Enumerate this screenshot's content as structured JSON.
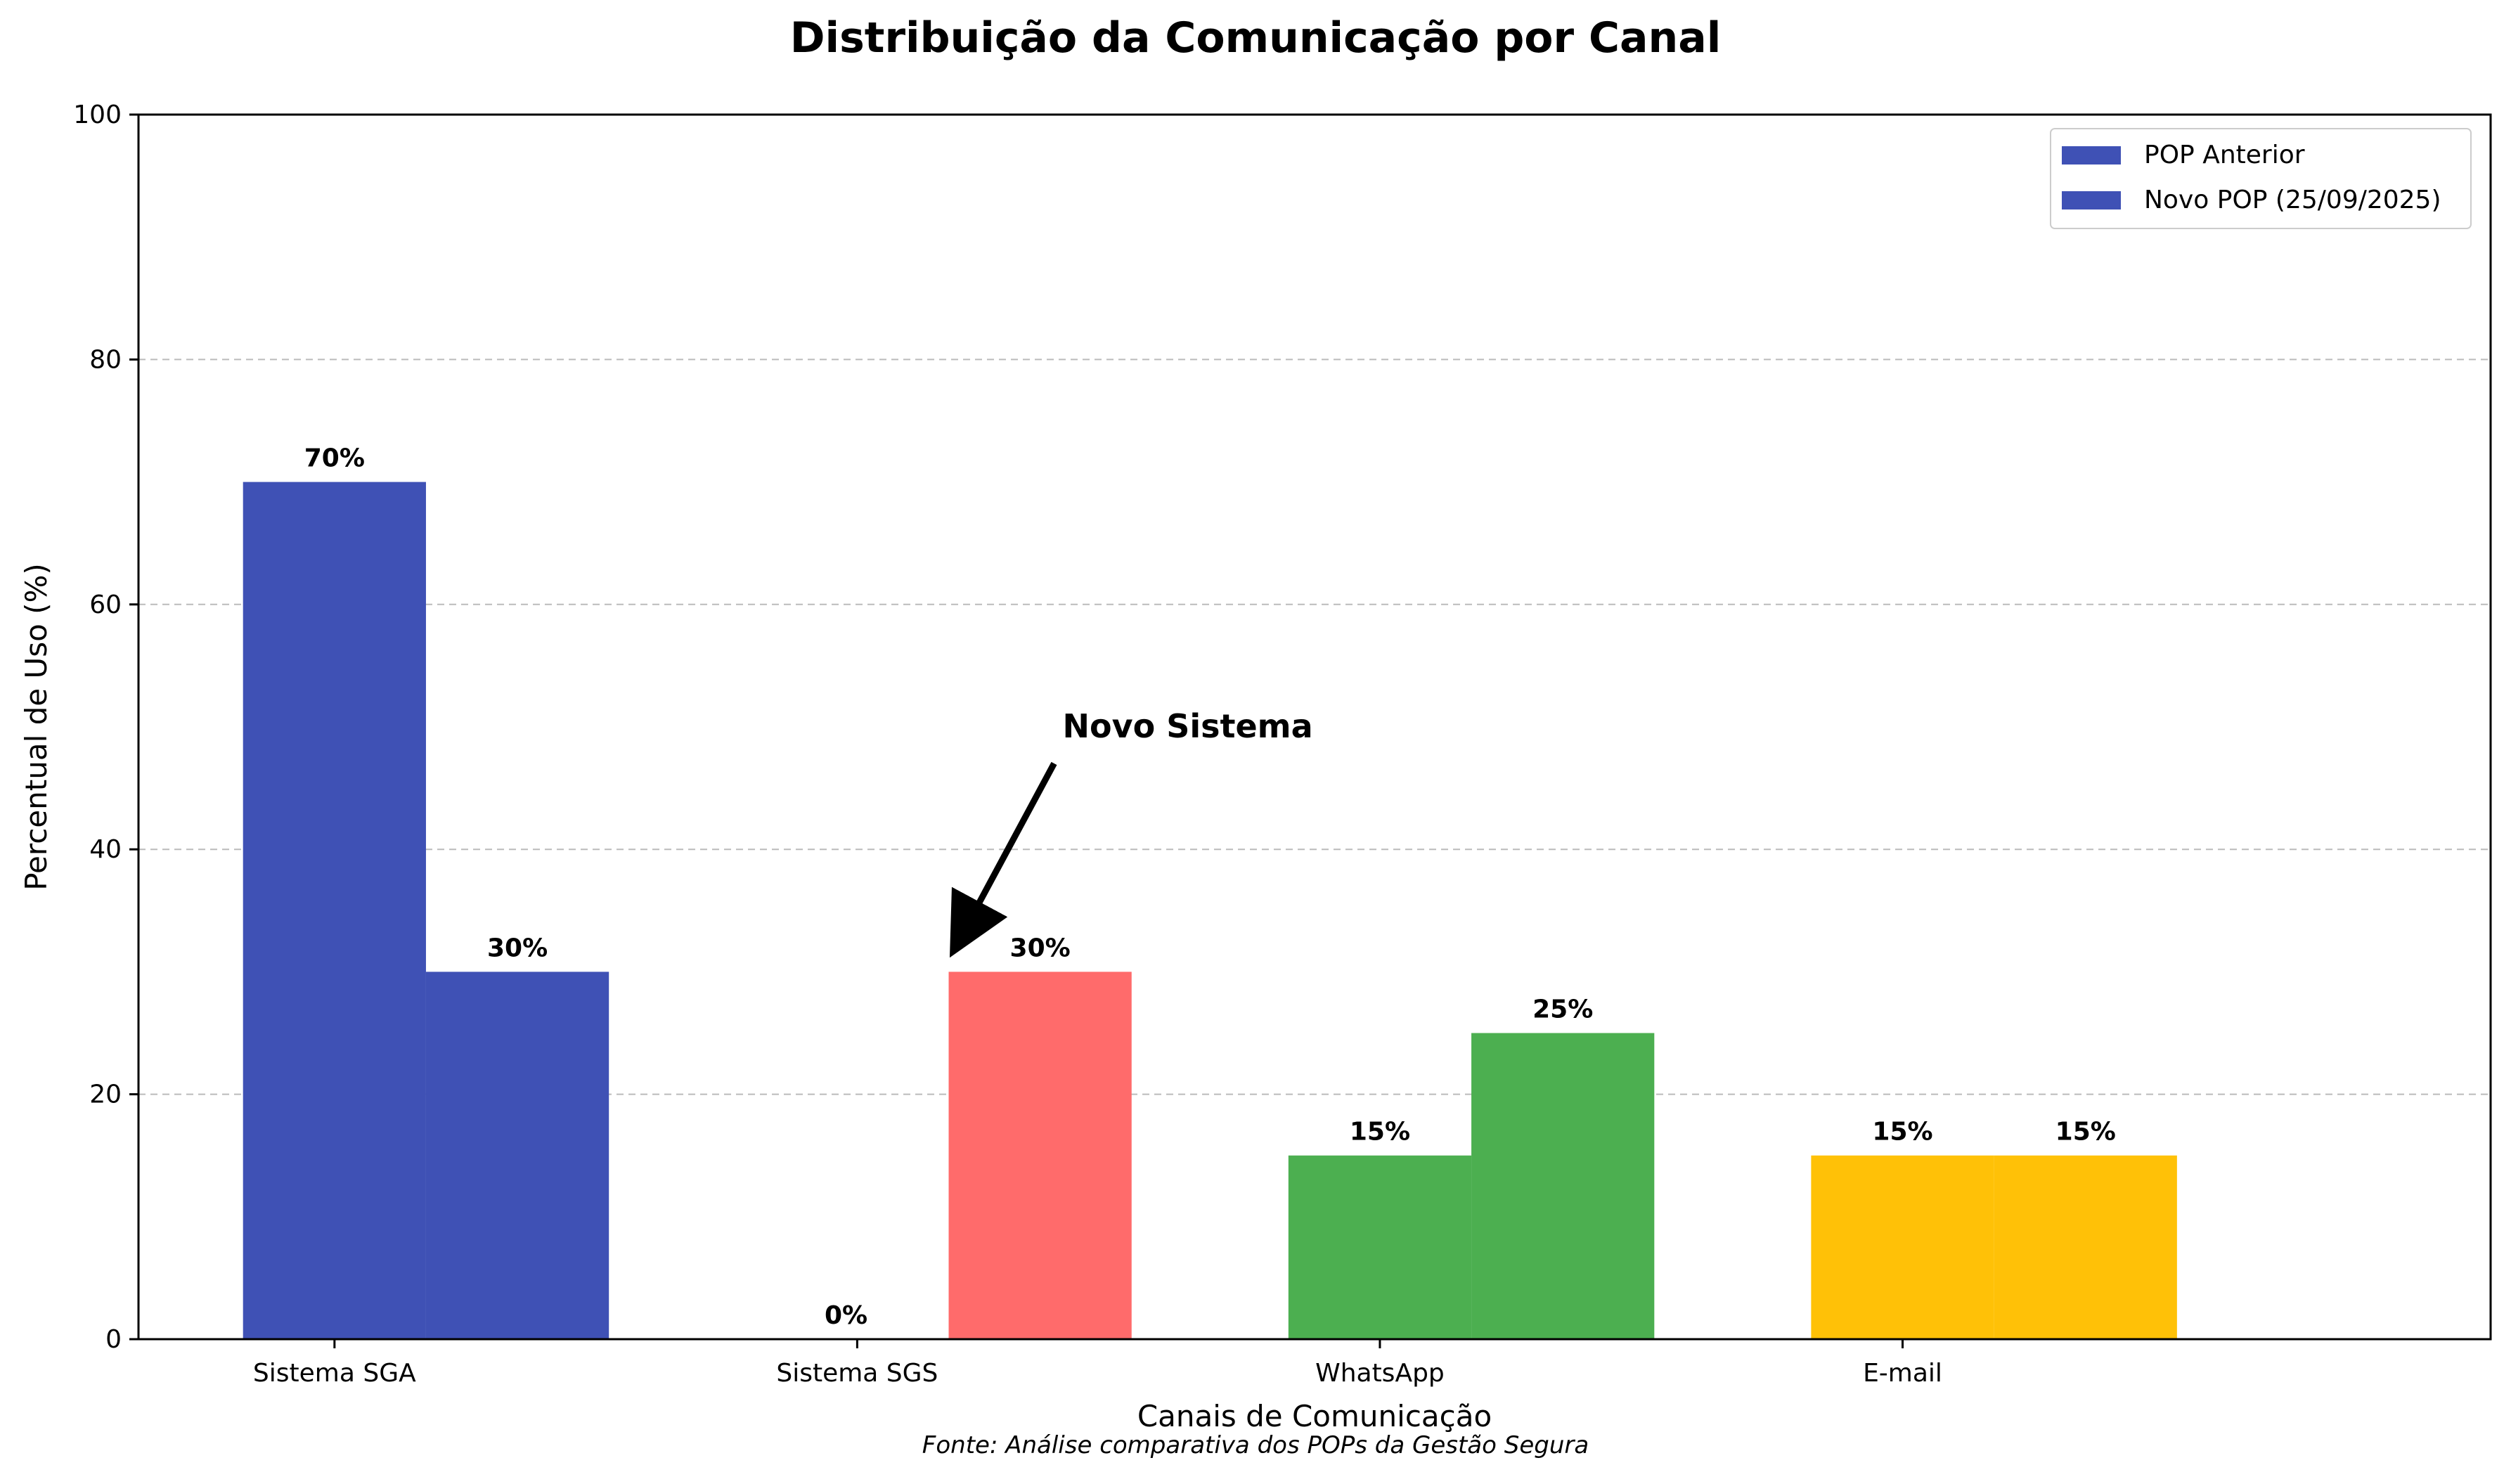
{
  "chart_data": {
    "type": "bar",
    "title": "Distribuição da Comunicação por Canal",
    "xlabel": "Canais de Comunicação",
    "ylabel": "Percentual de Uso (%)",
    "source_note": "Fonte: Análise comparativa dos POPs da Gestão Segura",
    "categories": [
      "Sistema SGA",
      "Sistema SGS",
      "WhatsApp",
      "E-mail"
    ],
    "category_colors": [
      "#3f51b5",
      "#ff6b6b",
      "#4caf50",
      "#ffc107"
    ],
    "series": [
      {
        "name": "POP Anterior",
        "values": [
          70,
          0,
          15,
          15
        ],
        "data_labels": [
          "70%",
          "0%",
          "15%",
          "15%"
        ]
      },
      {
        "name": "Novo POP (25/09/2025)",
        "values": [
          30,
          30,
          25,
          15
        ],
        "data_labels": [
          "30%",
          "30%",
          "25%",
          "15%"
        ]
      }
    ],
    "ylim": [
      0,
      100
    ],
    "yticks": [
      0,
      20,
      40,
      60,
      80,
      100
    ],
    "grid": "y-dashed",
    "legend": {
      "placement": "top-right",
      "colors": [
        "#3f51b5",
        "#3f51b5"
      ]
    },
    "annotation": {
      "text": "Novo Sistema",
      "category": "Sistema SGS",
      "series_index": 1,
      "text_value": 50
    }
  }
}
